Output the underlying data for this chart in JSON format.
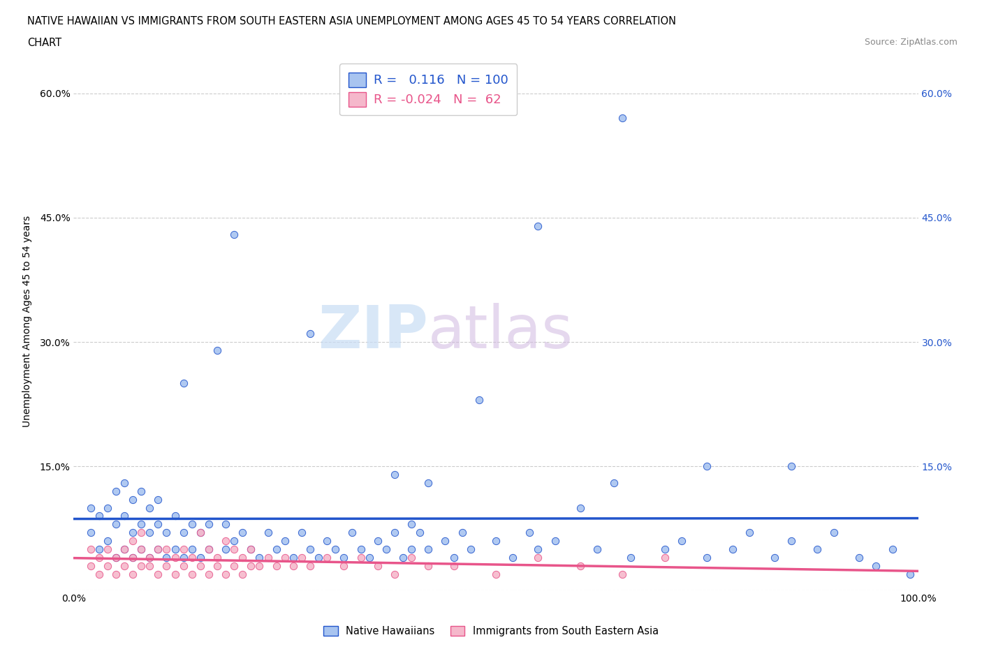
{
  "title_line1": "NATIVE HAWAIIAN VS IMMIGRANTS FROM SOUTH EASTERN ASIA UNEMPLOYMENT AMONG AGES 45 TO 54 YEARS CORRELATION",
  "title_line2": "CHART",
  "source": "Source: ZipAtlas.com",
  "ylabel": "Unemployment Among Ages 45 to 54 years",
  "xlim": [
    0.0,
    1.0
  ],
  "ylim": [
    0.0,
    0.65
  ],
  "blue_color": "#a8c4f0",
  "pink_color": "#f5b8cb",
  "blue_line_color": "#2255cc",
  "pink_line_color": "#e8558a",
  "legend_r_blue": "0.116",
  "legend_n_blue": "100",
  "legend_r_pink": "-0.024",
  "legend_n_pink": "62",
  "watermark_zip": "ZIP",
  "watermark_atlas": "atlas",
  "blue_scatter_x": [
    0.02,
    0.02,
    0.03,
    0.03,
    0.04,
    0.04,
    0.05,
    0.05,
    0.05,
    0.06,
    0.06,
    0.06,
    0.07,
    0.07,
    0.07,
    0.08,
    0.08,
    0.08,
    0.09,
    0.09,
    0.09,
    0.1,
    0.1,
    0.1,
    0.11,
    0.11,
    0.12,
    0.12,
    0.13,
    0.13,
    0.14,
    0.14,
    0.15,
    0.15,
    0.16,
    0.16,
    0.17,
    0.18,
    0.18,
    0.19,
    0.2,
    0.21,
    0.22,
    0.23,
    0.24,
    0.25,
    0.26,
    0.27,
    0.28,
    0.29,
    0.3,
    0.31,
    0.32,
    0.33,
    0.34,
    0.35,
    0.36,
    0.37,
    0.38,
    0.39,
    0.4,
    0.41,
    0.42,
    0.44,
    0.45,
    0.46,
    0.47,
    0.48,
    0.5,
    0.52,
    0.54,
    0.55,
    0.57,
    0.6,
    0.62,
    0.64,
    0.66,
    0.7,
    0.72,
    0.75,
    0.78,
    0.8,
    0.83,
    0.85,
    0.88,
    0.9,
    0.93,
    0.95,
    0.97,
    0.99,
    0.38,
    0.42,
    0.13,
    0.19,
    0.28,
    0.55,
    0.65,
    0.75,
    0.85,
    0.4
  ],
  "blue_scatter_y": [
    0.07,
    0.1,
    0.05,
    0.09,
    0.06,
    0.1,
    0.04,
    0.08,
    0.12,
    0.05,
    0.09,
    0.13,
    0.04,
    0.07,
    0.11,
    0.05,
    0.08,
    0.12,
    0.04,
    0.07,
    0.1,
    0.05,
    0.08,
    0.11,
    0.04,
    0.07,
    0.05,
    0.09,
    0.04,
    0.07,
    0.05,
    0.08,
    0.04,
    0.07,
    0.05,
    0.08,
    0.29,
    0.05,
    0.08,
    0.06,
    0.07,
    0.05,
    0.04,
    0.07,
    0.05,
    0.06,
    0.04,
    0.07,
    0.05,
    0.04,
    0.06,
    0.05,
    0.04,
    0.07,
    0.05,
    0.04,
    0.06,
    0.05,
    0.07,
    0.04,
    0.05,
    0.07,
    0.05,
    0.06,
    0.04,
    0.07,
    0.05,
    0.23,
    0.06,
    0.04,
    0.07,
    0.05,
    0.06,
    0.1,
    0.05,
    0.13,
    0.04,
    0.05,
    0.06,
    0.04,
    0.05,
    0.07,
    0.04,
    0.06,
    0.05,
    0.07,
    0.04,
    0.03,
    0.05,
    0.02,
    0.14,
    0.13,
    0.25,
    0.43,
    0.31,
    0.44,
    0.57,
    0.15,
    0.15,
    0.08
  ],
  "pink_scatter_x": [
    0.02,
    0.02,
    0.03,
    0.03,
    0.04,
    0.04,
    0.05,
    0.05,
    0.06,
    0.06,
    0.07,
    0.07,
    0.07,
    0.08,
    0.08,
    0.08,
    0.09,
    0.09,
    0.1,
    0.1,
    0.11,
    0.11,
    0.12,
    0.12,
    0.13,
    0.13,
    0.14,
    0.14,
    0.15,
    0.15,
    0.16,
    0.16,
    0.17,
    0.17,
    0.18,
    0.18,
    0.19,
    0.19,
    0.2,
    0.2,
    0.21,
    0.21,
    0.22,
    0.23,
    0.24,
    0.25,
    0.26,
    0.27,
    0.28,
    0.3,
    0.32,
    0.34,
    0.36,
    0.38,
    0.4,
    0.42,
    0.45,
    0.5,
    0.55,
    0.6,
    0.65,
    0.7
  ],
  "pink_scatter_y": [
    0.03,
    0.05,
    0.02,
    0.04,
    0.03,
    0.05,
    0.02,
    0.04,
    0.03,
    0.05,
    0.02,
    0.04,
    0.06,
    0.03,
    0.05,
    0.07,
    0.03,
    0.04,
    0.02,
    0.05,
    0.03,
    0.05,
    0.02,
    0.04,
    0.03,
    0.05,
    0.02,
    0.04,
    0.03,
    0.07,
    0.02,
    0.05,
    0.03,
    0.04,
    0.02,
    0.06,
    0.03,
    0.05,
    0.02,
    0.04,
    0.03,
    0.05,
    0.03,
    0.04,
    0.03,
    0.04,
    0.03,
    0.04,
    0.03,
    0.04,
    0.03,
    0.04,
    0.03,
    0.02,
    0.04,
    0.03,
    0.03,
    0.02,
    0.04,
    0.03,
    0.02,
    0.04
  ]
}
